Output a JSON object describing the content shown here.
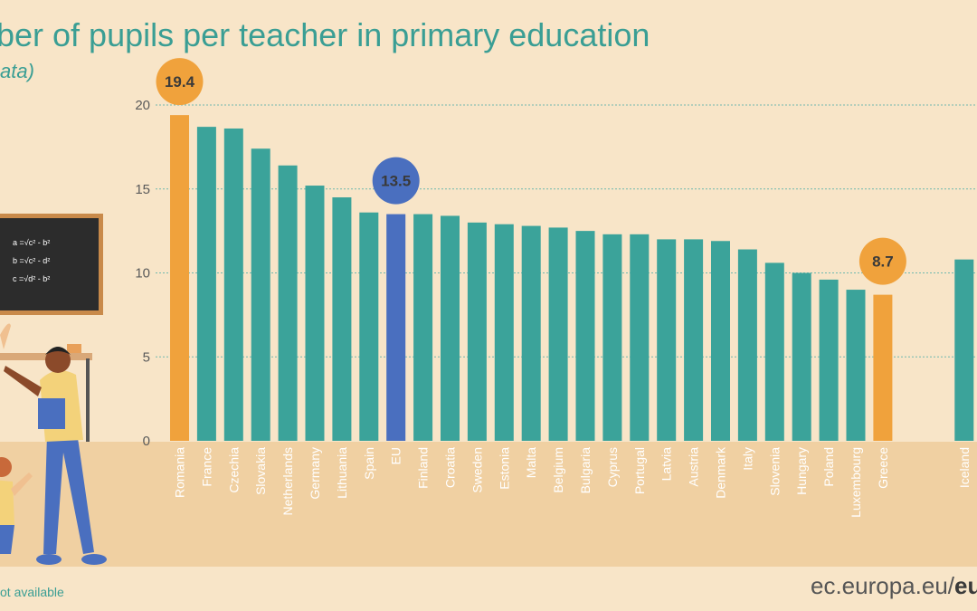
{
  "header": {
    "title": "ber of pupils per teacher in primary education",
    "subtitle": "ata)"
  },
  "footer": {
    "note": "ot available",
    "url_prefix": "ec.europa.eu/",
    "url_bold": "eur"
  },
  "illustration": {
    "formulas": [
      "a =√c² - b²",
      "b =√c² - d²",
      "c =√d² - b²"
    ]
  },
  "colors": {
    "background": "#f8e5c8",
    "band": "#f0d0a2",
    "default_bar": "#3ba39a",
    "highlight_bar": "#f0a23c",
    "eu_bar": "#4a6fbf",
    "title": "#3a9e94"
  },
  "chart_data": {
    "type": "bar",
    "title": "ber of pupils per teacher in primary education",
    "subtitle": "ata)",
    "ylim": [
      0,
      20
    ],
    "yticks": [
      0,
      5,
      10,
      15,
      20
    ],
    "grid": true,
    "categories": [
      "Romania",
      "France",
      "Czechia",
      "Slovakia",
      "Netherlands",
      "Germany",
      "Lithuania",
      "Spain",
      "EU",
      "Finland",
      "Croatia",
      "Sweden",
      "Estonia",
      "Malta",
      "Belgium",
      "Bulgaria",
      "Cyprus",
      "Portugal",
      "Latvia",
      "Austria",
      "Denmark",
      "Italy",
      "Slovenia",
      "Hungary",
      "Poland",
      "Luxembourg",
      "Greece",
      "Iceland"
    ],
    "values": [
      19.4,
      18.7,
      18.6,
      17.4,
      16.4,
      15.2,
      14.5,
      13.6,
      13.5,
      13.5,
      13.4,
      13.0,
      12.9,
      12.8,
      12.7,
      12.5,
      12.3,
      12.3,
      12.0,
      12.0,
      11.9,
      11.4,
      10.6,
      10.0,
      9.6,
      9.0,
      8.7,
      10.8
    ],
    "highlights": {
      "Romania": "max",
      "EU": "eu",
      "Greece": "min"
    },
    "badges": [
      {
        "category": "Romania",
        "label": "19.4"
      },
      {
        "category": "EU",
        "label": "13.5"
      },
      {
        "category": "Greece",
        "label": "8.7"
      }
    ]
  }
}
